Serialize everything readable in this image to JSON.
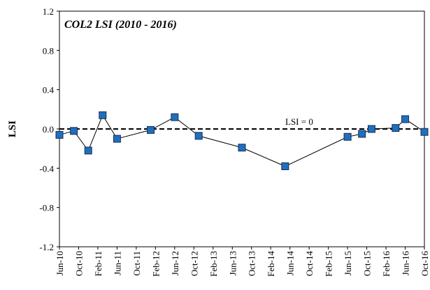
{
  "chart_data": {
    "type": "line",
    "title": "COL2 LSI (2010 - 2016)",
    "y_label": "LSI",
    "x": [
      "2010-06",
      "2010-09",
      "2010-12",
      "2011-03",
      "2011-06",
      "2012-01",
      "2012-06",
      "2012-11",
      "2013-08",
      "2014-05",
      "2015-06",
      "2015-09",
      "2015-11",
      "2016-04",
      "2016-06",
      "2016-10"
    ],
    "series": [
      {
        "name": "COL2 LSI",
        "color": "#1f6fbf",
        "values": [
          -0.06,
          -0.02,
          -0.22,
          0.14,
          -0.1,
          -0.01,
          0.12,
          -0.07,
          -0.19,
          -0.38,
          -0.08,
          -0.05,
          0.0,
          0.01,
          0.1,
          -0.03
        ]
      }
    ],
    "xlim": [
      "2010-06",
      "2016-10"
    ],
    "xticks": [
      {
        "value": "2010-06",
        "label": "Jun-10"
      },
      {
        "value": "2010-10",
        "label": "Oct-10"
      },
      {
        "value": "2011-02",
        "label": "Feb-11"
      },
      {
        "value": "2011-06",
        "label": "Jun-11"
      },
      {
        "value": "2011-10",
        "label": "Oct-11"
      },
      {
        "value": "2012-02",
        "label": "Feb-12"
      },
      {
        "value": "2012-06",
        "label": "Jun-12"
      },
      {
        "value": "2012-10",
        "label": "Oct-12"
      },
      {
        "value": "2013-02",
        "label": "Feb-13"
      },
      {
        "value": "2013-06",
        "label": "Jun-13"
      },
      {
        "value": "2013-10",
        "label": "Oct-13"
      },
      {
        "value": "2014-02",
        "label": "Feb-14"
      },
      {
        "value": "2014-06",
        "label": "Jun-14"
      },
      {
        "value": "2014-10",
        "label": "Oct-14"
      },
      {
        "value": "2015-02",
        "label": "Feb-15"
      },
      {
        "value": "2015-06",
        "label": "Jun-15"
      },
      {
        "value": "2015-10",
        "label": "Oct-15"
      },
      {
        "value": "2016-02",
        "label": "Feb-16"
      },
      {
        "value": "2016-06",
        "label": "Jun-16"
      },
      {
        "value": "2016-10",
        "label": "Oct-16"
      }
    ],
    "ylim": [
      -1.2,
      1.2
    ],
    "yticks": [
      -1.2,
      -0.8,
      -0.4,
      {
        "value": 0,
        "label": "0.0"
      },
      0.4,
      0.8,
      1.2
    ],
    "reference_line": {
      "value": 0,
      "label": "LSI = 0"
    },
    "grid": false
  }
}
